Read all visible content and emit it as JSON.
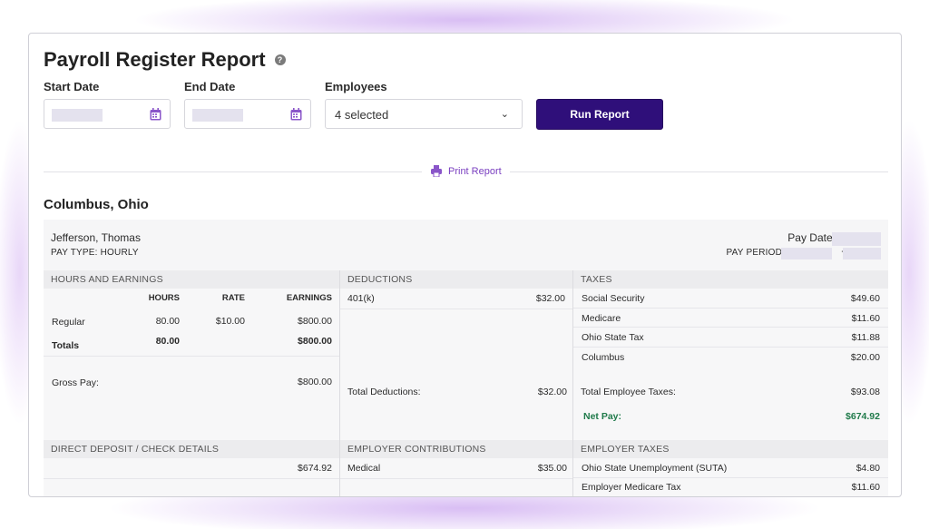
{
  "report": {
    "title": "Payroll Register Report",
    "help_icon": "?"
  },
  "filters": {
    "start_date_label": "Start Date",
    "end_date_label": "End Date",
    "employees_label": "Employees",
    "employees_value": "4 selected",
    "run_button": "Run Report",
    "print_link": "Print Report"
  },
  "location": "Columbus, Ohio",
  "employee": {
    "name": "Jefferson, Thomas",
    "pay_type": "PAY TYPE: HOURLY",
    "pay_date_label": "Pay Date:",
    "pay_period_label": "PAY PERIOD:",
    "pay_period_sep": "-"
  },
  "hours_earnings": {
    "header": "HOURS AND EARNINGS",
    "columns": [
      "HOURS",
      "RATE",
      "EARNINGS"
    ],
    "rows": [
      {
        "label": "Regular",
        "hours": "80.00",
        "rate": "$10.00",
        "earnings": "$800.00"
      }
    ],
    "totals": {
      "label": "Totals",
      "hours": "80.00",
      "earnings": "$800.00"
    },
    "gross_pay_label": "Gross Pay:",
    "gross_pay": "$800.00"
  },
  "deductions": {
    "header": "DEDUCTIONS",
    "rows": [
      {
        "label": "401(k)",
        "amount": "$32.00"
      }
    ],
    "total_label": "Total Deductions:",
    "total": "$32.00"
  },
  "taxes": {
    "header": "TAXES",
    "rows": [
      {
        "label": "Social Security",
        "amount": "$49.60"
      },
      {
        "label": "Medicare",
        "amount": "$11.60"
      },
      {
        "label": "Ohio State Tax",
        "amount": "$11.88"
      },
      {
        "label": "Columbus",
        "amount": "$20.00"
      }
    ],
    "total_label": "Total Employee Taxes:",
    "total": "$93.08",
    "net_pay_label": "Net Pay:",
    "net_pay": "$674.92"
  },
  "direct_deposit": {
    "header": "DIRECT DEPOSIT / CHECK DETAILS",
    "amount": "$674.92"
  },
  "employer_contributions": {
    "header": "EMPLOYER CONTRIBUTIONS",
    "rows": [
      {
        "label": "Medical",
        "amount": "$35.00"
      }
    ]
  },
  "employer_taxes": {
    "header": "EMPLOYER TAXES",
    "rows": [
      {
        "label": "Ohio State Unemployment (SUTA)",
        "amount": "$4.80"
      },
      {
        "label": "Employer Medicare Tax",
        "amount": "$11.60"
      }
    ]
  },
  "colors": {
    "primary": "#2f0f7a",
    "accent": "#7a3fc0",
    "net_pay": "#1f7a4a"
  }
}
